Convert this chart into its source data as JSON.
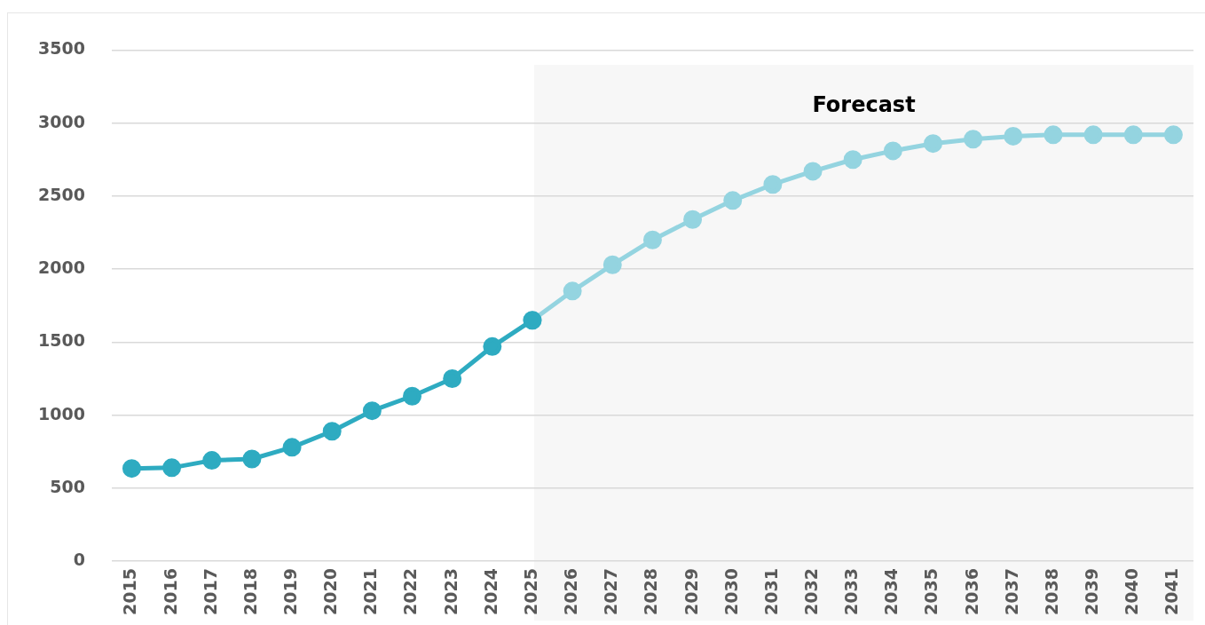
{
  "chart_data": {
    "type": "line",
    "categories": [
      "2015",
      "2016",
      "2017",
      "2018",
      "2019",
      "2020",
      "2021",
      "2022",
      "2023",
      "2024",
      "2025",
      "2026",
      "2027",
      "2028",
      "2029",
      "2030",
      "2031",
      "2032",
      "2033",
      "2034",
      "2035",
      "2036",
      "2037",
      "2038",
      "2039",
      "2040",
      "2041"
    ],
    "series": [
      {
        "color": "#2eabc1",
        "values": [
          635,
          640,
          690,
          700,
          780,
          890,
          1030,
          1130,
          1250,
          1470,
          1650,
          null,
          null,
          null,
          null,
          null,
          null,
          null,
          null,
          null,
          null,
          null,
          null,
          null,
          null,
          null,
          null
        ]
      },
      {
        "color": "#94d4e0",
        "values": [
          null,
          null,
          null,
          null,
          null,
          null,
          null,
          null,
          null,
          null,
          1650,
          1850,
          2030,
          2200,
          2340,
          2470,
          2580,
          2670,
          2750,
          2810,
          2860,
          2890,
          2910,
          2920,
          2920,
          2920,
          2920
        ]
      }
    ],
    "ylim": [
      0,
      3500
    ],
    "yticks": [
      0,
      500,
      1000,
      1500,
      2000,
      2500,
      3000,
      3500
    ],
    "grid": "y",
    "marker": "circle",
    "line_style": "solid",
    "legend": false,
    "bands": [
      {
        "axis": "x",
        "from": "2025",
        "to": "2041",
        "label": "Forecast",
        "color": "#f7f7f7"
      }
    ]
  }
}
